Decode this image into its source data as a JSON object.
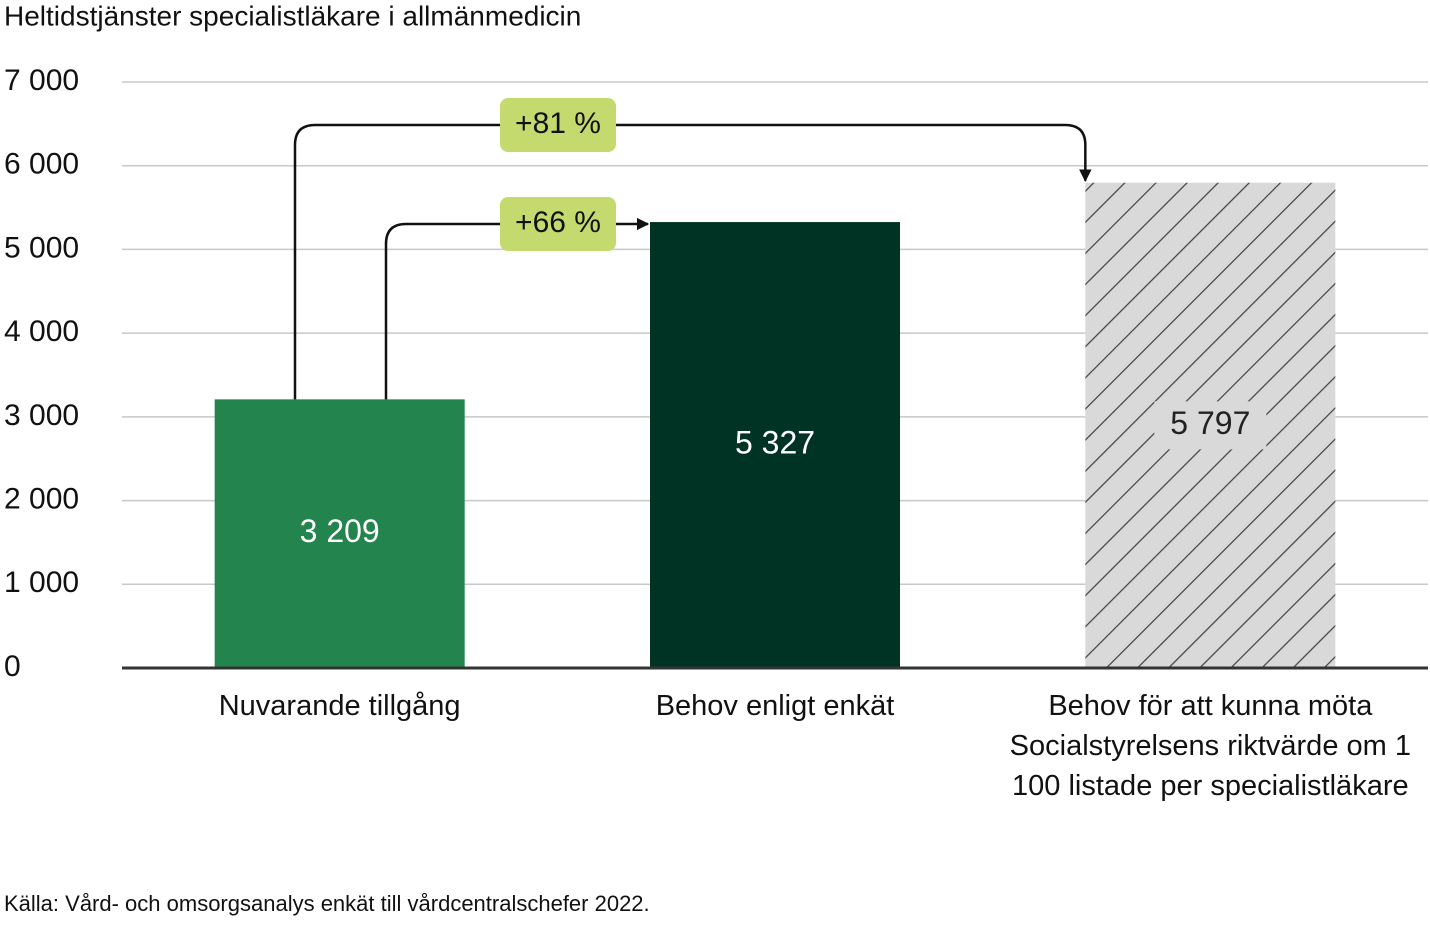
{
  "chart_data": {
    "type": "bar",
    "title": "Heltidstjänster specialistläkare i allmänmedicin",
    "categories": [
      "Nuvarande tillgång",
      "Behov enligt enkät",
      "Behov för att kunna möta Socialstyrelsens riktvärde om 1 100 listade per specialistläkare"
    ],
    "values": [
      3209,
      5327,
      5797
    ],
    "value_labels": [
      "3 209",
      "5 327",
      "5 797"
    ],
    "colors": [
      "#23844e",
      "#003324",
      "#d9d9d9"
    ],
    "hatch": [
      false,
      false,
      true
    ],
    "ylim": [
      0,
      7000
    ],
    "yticks": [
      0,
      {
        "value": 1000,
        "label": "1 000"
      },
      {
        "value": 2000,
        "label": "2 000"
      },
      {
        "value": 3000,
        "label": "3 000"
      },
      {
        "value": 4000,
        "label": "4 000"
      },
      {
        "value": 5000,
        "label": "5 000"
      },
      {
        "value": 6000,
        "label": "6 000"
      },
      {
        "value": 7000,
        "label": "7 000"
      }
    ],
    "grid": true,
    "annotations": [
      "+81 %",
      "+66 %"
    ],
    "source": "Källa: Vård- och omsorgsanalys enkät till vårdcentralschefer 2022."
  }
}
